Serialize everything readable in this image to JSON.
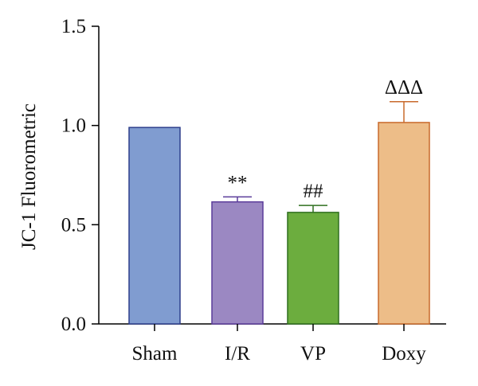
{
  "chart_data": {
    "type": "bar",
    "ylabel": "JC-1 Fluorometric",
    "xlabel": "",
    "ylim": [
      0,
      1.5
    ],
    "yticks": [
      "0.0",
      "0.5",
      "1.0",
      "1.5"
    ],
    "ytick_values": [
      0,
      0.5,
      1.0,
      1.5
    ],
    "grid": false,
    "categories": [
      "Sham",
      "I/R",
      "VP",
      "Doxy"
    ],
    "values": [
      0.99,
      0.615,
      0.562,
      1.015
    ],
    "errors": [
      0,
      0.025,
      0.035,
      0.105
    ],
    "annotations": [
      "",
      "**",
      "##",
      "ΔΔΔ"
    ],
    "fill_colors": [
      "#809cd0",
      "#9b88c2",
      "#6cad3e",
      "#edbd88"
    ],
    "edge_colors": [
      "#2e3f8c",
      "#5b3c9a",
      "#2f6f1f",
      "#c86a2c"
    ]
  }
}
